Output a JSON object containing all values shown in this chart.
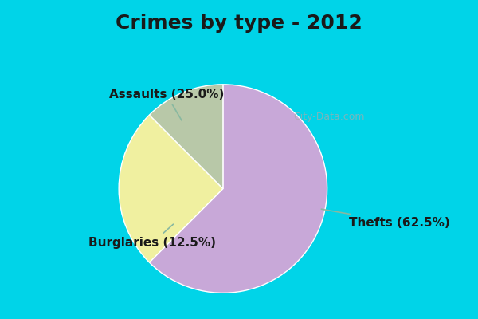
{
  "title": "Crimes by type - 2012",
  "slices": [
    {
      "label": "Thefts (62.5%)",
      "value": 62.5,
      "color": "#c8a8d8"
    },
    {
      "label": "Assaults (25.0%)",
      "value": 25.0,
      "color": "#f0f0a0"
    },
    {
      "label": "Burglaries (12.5%)",
      "value": 12.5,
      "color": "#b8c8a8"
    }
  ],
  "background_color_top": "#00d4e8",
  "background_color_main": "#d4ede0",
  "title_fontsize": 18,
  "label_fontsize": 11,
  "watermark": "City-Data.com",
  "startangle": 90
}
